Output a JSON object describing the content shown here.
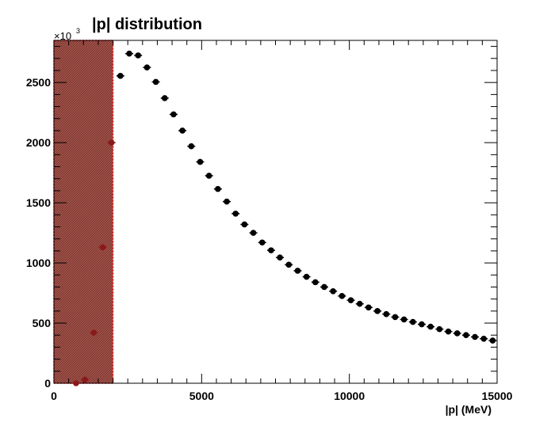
{
  "chart_data": {
    "type": "scatter",
    "title": "|p| distribution",
    "xlabel": "|p| (MeV)",
    "ylabel": "",
    "y_multiplier_base": "×10",
    "y_multiplier_exp": "3",
    "xlim": [
      0,
      15000
    ],
    "ylim": [
      0,
      2850
    ],
    "x_ticks": [
      0,
      5000,
      10000,
      15000
    ],
    "y_ticks": [
      0,
      500,
      1000,
      1500,
      2000,
      2500
    ],
    "grid": false,
    "legend": "none",
    "colors": {
      "points": "#000000",
      "highlighted_points": "#8b1a1a",
      "shaded_region_fill": "#a0524a",
      "shaded_region_border": "#ff0000"
    },
    "shaded_region": {
      "x_start": 0,
      "x_end": 2000,
      "pattern": "hatched"
    },
    "series": [
      {
        "x": [
          750,
          1050,
          1350,
          1650,
          1950,
          2250,
          2550,
          2850,
          3150,
          3450,
          3750,
          4050,
          4350,
          4650,
          4950,
          5250,
          5550,
          5850,
          6150,
          6450,
          6750,
          7050,
          7350,
          7650,
          7950,
          8250,
          8550,
          8850,
          9150,
          9450,
          9750,
          10050,
          10350,
          10650,
          10950,
          11250,
          11550,
          11850,
          12150,
          12450,
          12750,
          13050,
          13350,
          13650,
          13950,
          14250,
          14550,
          14850
        ],
        "y": [
          0,
          30,
          420,
          1130,
          2000,
          2555,
          2740,
          2725,
          2625,
          2505,
          2370,
          2235,
          2100,
          1970,
          1840,
          1725,
          1615,
          1510,
          1410,
          1320,
          1250,
          1170,
          1105,
          1045,
          985,
          935,
          885,
          840,
          800,
          765,
          725,
          690,
          660,
          630,
          600,
          575,
          550,
          530,
          510,
          490,
          470,
          450,
          430,
          415,
          400,
          385,
          370,
          355
        ]
      }
    ]
  }
}
